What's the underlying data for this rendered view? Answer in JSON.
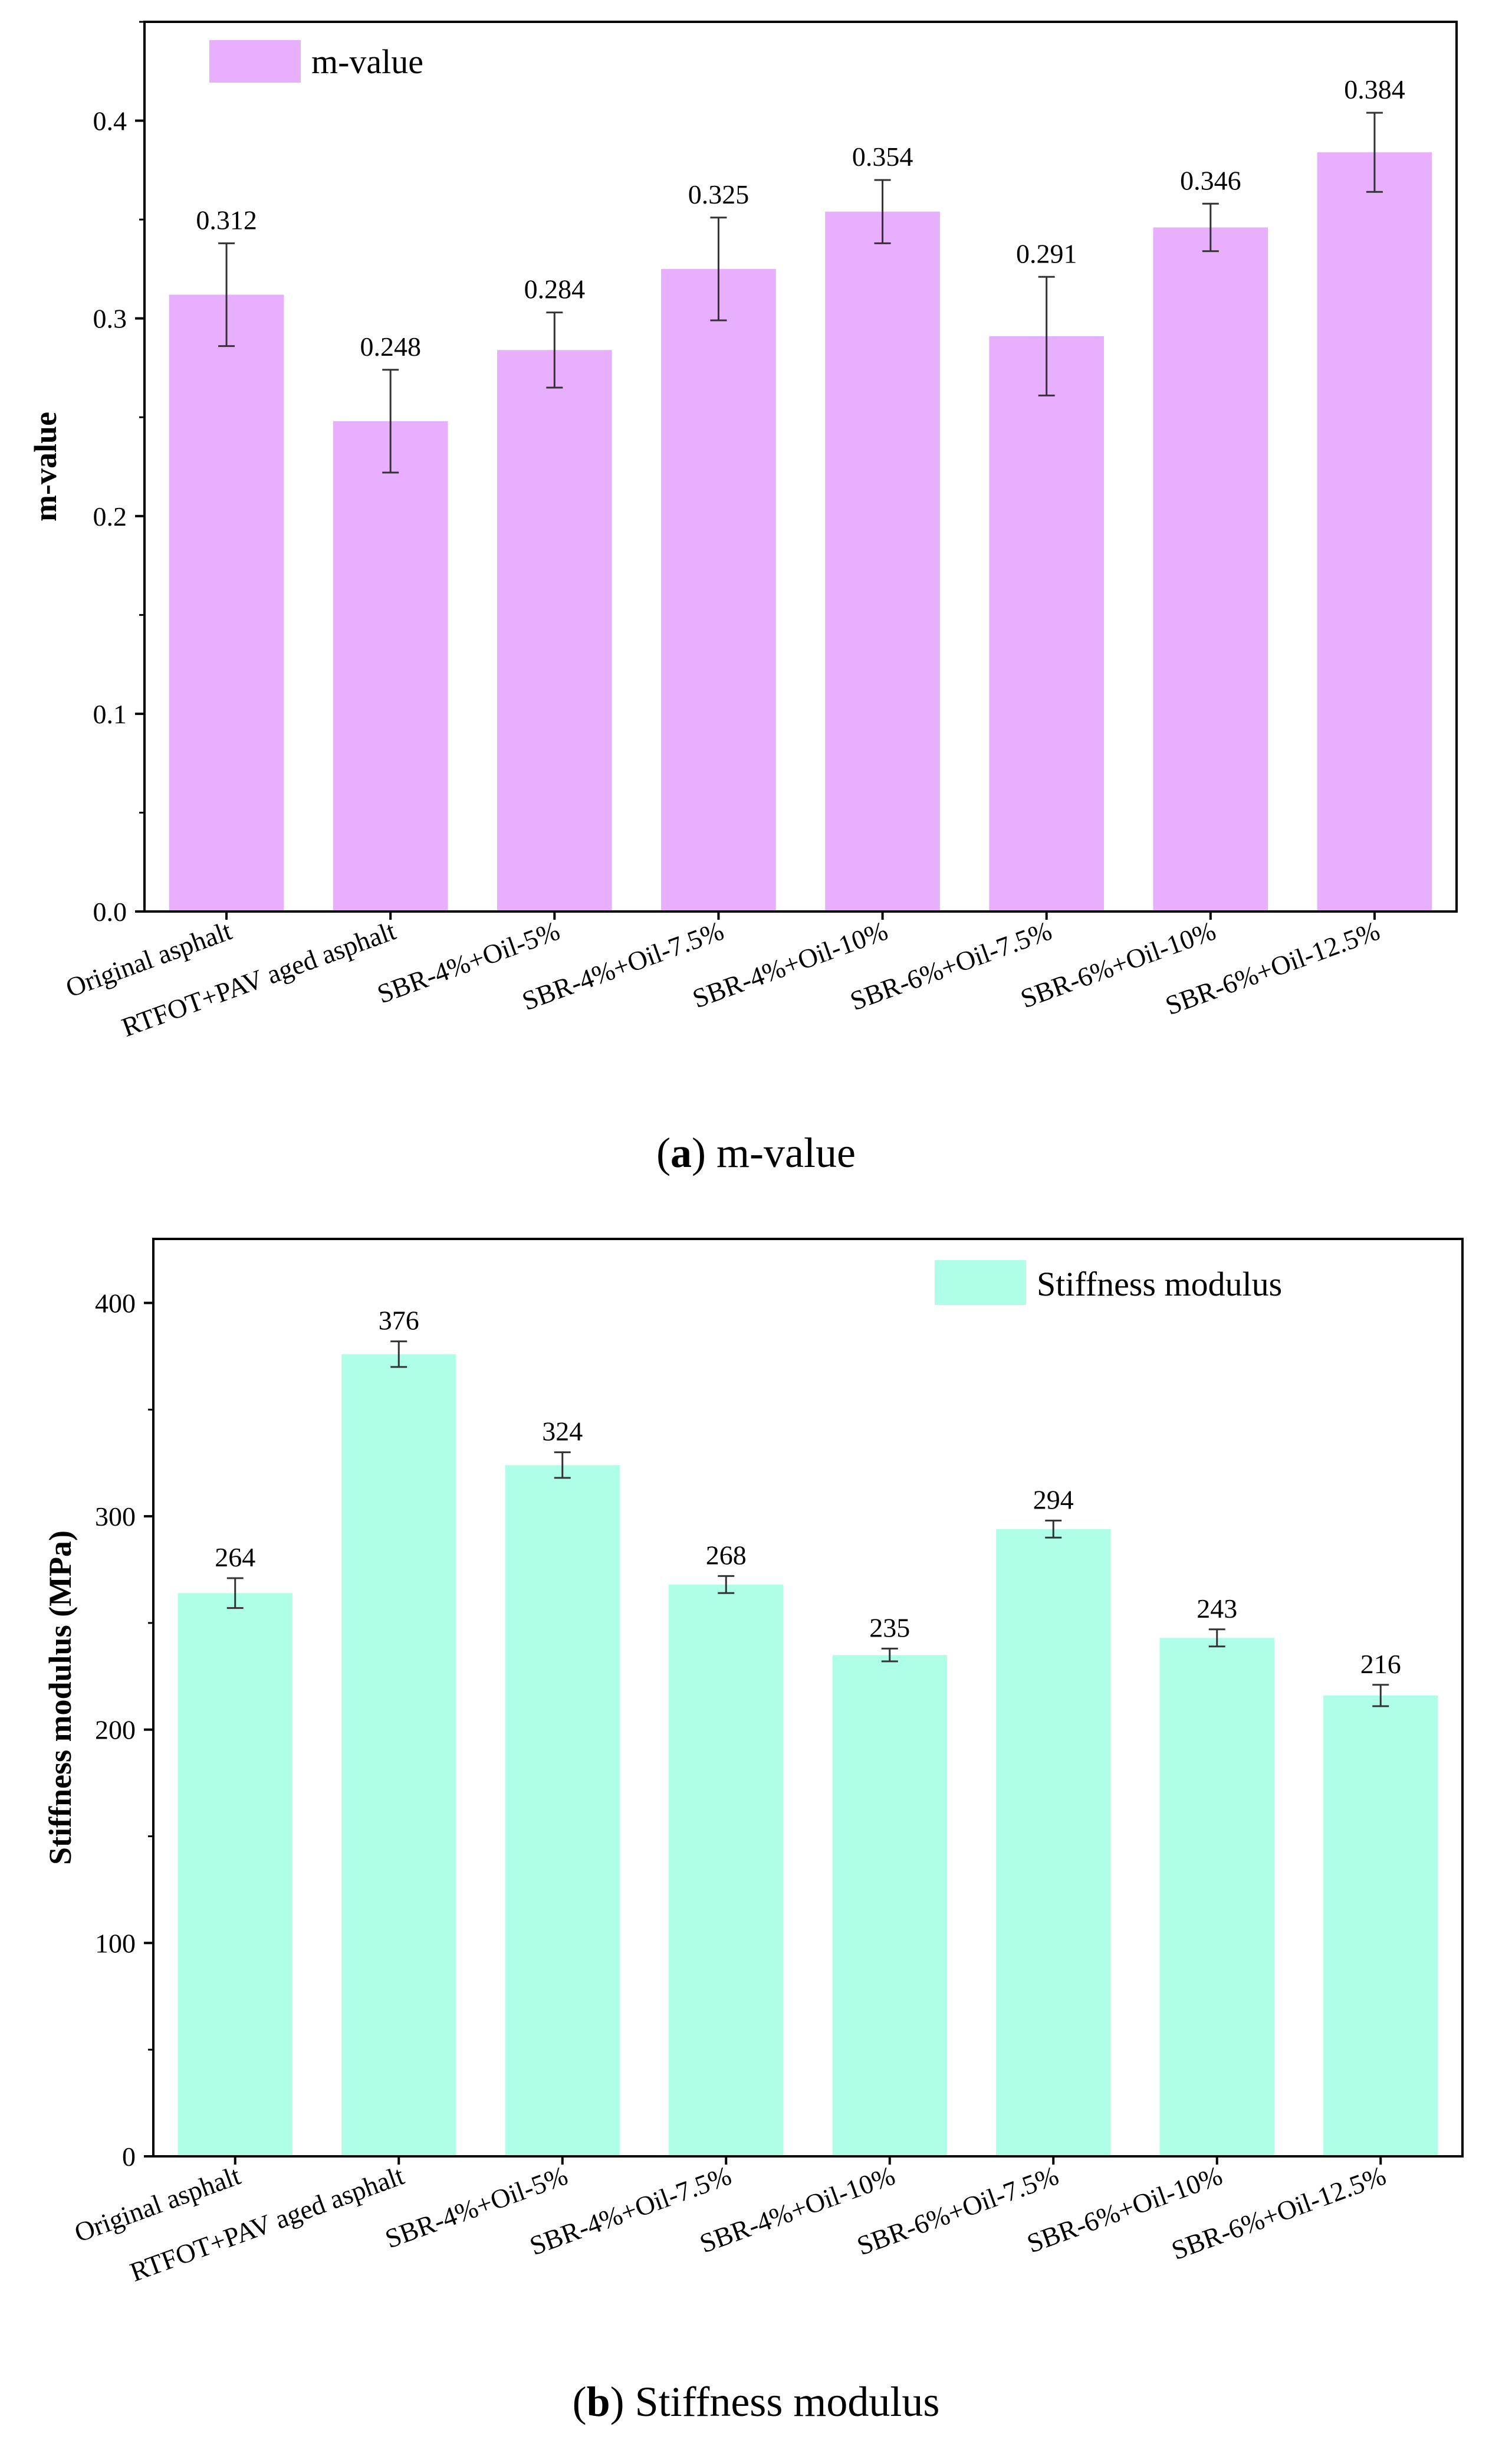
{
  "chart_data": [
    {
      "type": "bar",
      "title": "",
      "xlabel": "",
      "ylabel": "m-value",
      "ylim": [
        0,
        0.45
      ],
      "yticks": [
        "0.0",
        "0.1",
        "0.2",
        "0.3",
        "0.4"
      ],
      "ytick_values": [
        0,
        0.1,
        0.2,
        0.3,
        0.4
      ],
      "categories": [
        "Original asphalt",
        "RTFOT+PAV aged asphalt",
        "SBR-4%+Oil-5%",
        "SBR-4%+Oil-7.5%",
        "SBR-4%+Oil-10%",
        "SBR-6%+Oil-7.5%",
        "SBR-6%+Oil-10%",
        "SBR-6%+Oil-12.5%"
      ],
      "values": [
        0.312,
        0.248,
        0.284,
        0.325,
        0.354,
        0.291,
        0.346,
        0.384
      ],
      "value_labels": [
        "0.312",
        "0.248",
        "0.284",
        "0.325",
        "0.354",
        "0.291",
        "0.346",
        "0.384"
      ],
      "errors": [
        0.026,
        0.026,
        0.019,
        0.026,
        0.016,
        0.03,
        0.012,
        0.02
      ],
      "legend": "m-value",
      "legend_position": "top-left",
      "color": "#E9AFFF",
      "caption_prefix": "a",
      "caption_text": "m-value"
    },
    {
      "type": "bar",
      "title": "",
      "xlabel": "",
      "ylabel": "Stiffness modulus (MPa)",
      "ylim": [
        0,
        430
      ],
      "yticks": [
        "0",
        "100",
        "200",
        "300",
        "400"
      ],
      "ytick_values": [
        0,
        100,
        200,
        300,
        400
      ],
      "categories": [
        "Original asphalt",
        "RTFOT+PAV aged asphalt",
        "SBR-4%+Oil-5%",
        "SBR-4%+Oil-7.5%",
        "SBR-4%+Oil-10%",
        "SBR-6%+Oil-7.5%",
        "SBR-6%+Oil-10%",
        "SBR-6%+Oil-12.5%"
      ],
      "values": [
        264,
        376,
        324,
        268,
        235,
        294,
        243,
        216
      ],
      "value_labels": [
        "264",
        "376",
        "324",
        "268",
        "235",
        "294",
        "243",
        "216"
      ],
      "errors": [
        7,
        6,
        6,
        4,
        3,
        4,
        4,
        5
      ],
      "legend": "Stiffness modulus",
      "legend_position": "top-right",
      "color": "#AFFFE8",
      "caption_prefix": "b",
      "caption_text": "Stiffness modulus"
    }
  ]
}
